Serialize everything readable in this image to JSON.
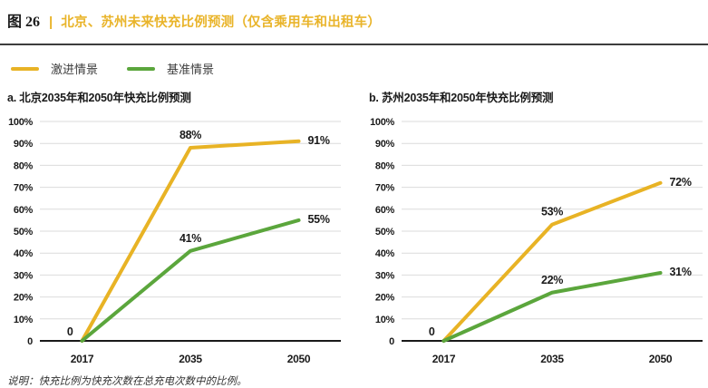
{
  "header": {
    "figure_label": "图 26",
    "divider": "|",
    "title": "北京、苏州未来快充比例预测（仅含乘用车和出租车）",
    "title_color": "#E9B42A"
  },
  "legend": {
    "items": [
      {
        "label": "激进情景",
        "color": "#E8B325"
      },
      {
        "label": "基准情景",
        "color": "#5BA63C"
      }
    ]
  },
  "chart_data": [
    {
      "type": "line",
      "title": "a. 北京2035年和2050年快充比例预测",
      "categories": [
        "2017",
        "2035",
        "2050"
      ],
      "series": [
        {
          "name": "激进情景",
          "color": "#E8B325",
          "values": [
            0,
            88,
            91
          ],
          "labels": [
            "",
            "88%",
            "91%"
          ]
        },
        {
          "name": "基准情景",
          "color": "#5BA63C",
          "values": [
            0,
            41,
            55
          ],
          "labels": [
            "",
            "41%",
            "55%"
          ]
        }
      ],
      "origin_label": "0",
      "ylim": [
        0,
        100
      ],
      "y_ticks": [
        "0",
        "10%",
        "20%",
        "30%",
        "40%",
        "50%",
        "60%",
        "70%",
        "80%",
        "90%",
        "100%"
      ],
      "grid": true,
      "legend_position": "top-left-shared"
    },
    {
      "type": "line",
      "title": "b. 苏州2035年和2050年快充比例预测",
      "categories": [
        "2017",
        "2035",
        "2050"
      ],
      "series": [
        {
          "name": "激进情景",
          "color": "#E8B325",
          "values": [
            0,
            53,
            72
          ],
          "labels": [
            "",
            "53%",
            "72%"
          ]
        },
        {
          "name": "基准情景",
          "color": "#5BA63C",
          "values": [
            0,
            22,
            31
          ],
          "labels": [
            "",
            "22%",
            "31%"
          ]
        }
      ],
      "origin_label": "0",
      "ylim": [
        0,
        100
      ],
      "y_ticks": [
        "0",
        "10%",
        "20%",
        "30%",
        "40%",
        "50%",
        "60%",
        "70%",
        "80%",
        "90%",
        "100%"
      ],
      "grid": true,
      "legend_position": "top-left-shared"
    }
  ],
  "footnote": "说明：快充比例为快充次数在总充电次数中的比例。"
}
